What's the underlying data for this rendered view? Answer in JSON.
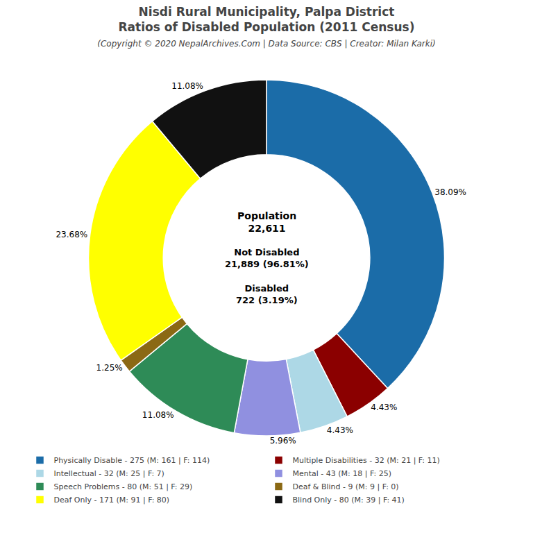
{
  "chart_data": {
    "type": "donut",
    "title": "Nisdi Rural Municipality, Palpa District\nRatios of Disabled Population (2011 Census)",
    "subtitle": "(Copyright © 2020 NepalArchives.Com | Data Source: CBS | Creator: Milan Karki)",
    "categories": [
      "Physically Disable - 275 (M: 161 | F: 114)",
      "Multiple Disabilities - 32 (M: 21 | F: 11)",
      "Intellectual - 32 (M: 25 | F: 7)",
      "Mental - 43 (M: 18 | F: 25)",
      "Speech Problems - 80 (M: 51 | F: 29)",
      "Deaf & Blind - 9 (M: 9 | F: 0)",
      "Deaf Only - 171 (M: 91 | F: 80)",
      "Blind Only - 80 (M: 39 | F: 41)"
    ],
    "values": [
      38.09,
      4.43,
      4.43,
      5.96,
      11.08,
      1.25,
      23.68,
      11.08
    ],
    "value_labels": [
      "38.09%",
      "4.43%",
      "4.43%",
      "5.96%",
      "11.08%",
      "1.25%",
      "23.68%",
      "11.08%"
    ],
    "colors": [
      "#1b6ca8",
      "#8b0000",
      "#add8e6",
      "#9090e0",
      "#2e8b57",
      "#8b6914",
      "#ffff00",
      "#111111"
    ],
    "data_labels": true,
    "legend": "bottom",
    "annotations": [
      "Population\n22,611",
      "Not Disabled\n21,889 (96.81%)",
      "Disabled\n722 (3.19%)"
    ]
  }
}
